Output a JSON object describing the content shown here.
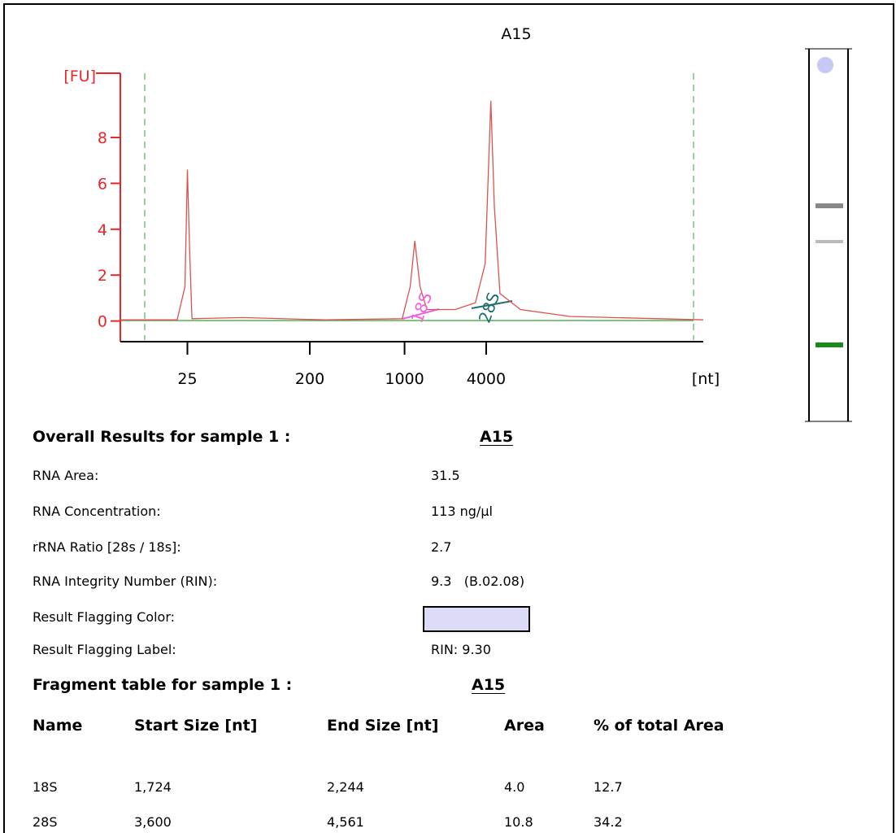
{
  "chart_data": {
    "type": "line",
    "title": "A15",
    "ylabel": "[FU]",
    "xlabel": "[nt]",
    "log_x": true,
    "x": [
      8,
      21,
      24,
      25,
      26,
      27,
      64,
      258,
      961,
      1100,
      1190,
      1300,
      1460,
      2370,
      3330,
      3930,
      4330,
      4600,
      5060,
      7150,
      16600,
      160000
    ],
    "series": [
      {
        "color": "#d9534f",
        "values": [
          0.05,
          0.05,
          1.5,
          6.6,
          3,
          0.1,
          0.15,
          0.05,
          0.1,
          1.5,
          3.5,
          1.5,
          0.5,
          0.5,
          0.8,
          2.5,
          9.6,
          5,
          1.2,
          0.5,
          0.2,
          0.05
        ]
      }
    ],
    "axis_color": "#e8262a",
    "annotations": [
      {
        "text": "18S",
        "x": 1460,
        "y": 0.5,
        "color": "#f060e0"
      },
      {
        "text": "28S",
        "x": 4600,
        "y": 0.5,
        "color": "#207070"
      }
    ],
    "xlim": [
      8,
      160000
    ],
    "xticks": [
      25,
      200,
      1000,
      4000
    ],
    "ylim": [
      -0.9,
      10.8
    ],
    "yticks": [
      0,
      2,
      4,
      6,
      8
    ]
  },
  "overall": {
    "title": "Overall Results for sample 1 :",
    "sample": "A15",
    "rows": [
      [
        "RNA Area:",
        "31.5"
      ],
      [
        "RNA Concentration:",
        "113 ng/µl"
      ],
      [
        "rRNA Ratio [28s / 18s]:",
        "2.7"
      ],
      [
        "RNA Integrity Number (RIN):",
        "9.3   (B.02.08)"
      ],
      [
        "Result Flagging Color:",
        ""
      ],
      [
        "Result Flagging Label:",
        "RIN: 9.30"
      ]
    ],
    "flag_color": "#dcdcf8"
  },
  "fragments": {
    "title": "Fragment table for sample 1 :",
    "sample": "A15",
    "header": [
      "Name",
      "Start Size [nt]",
      "End Size [nt]",
      "Area",
      "% of total Area"
    ],
    "rows": [
      [
        "18S",
        "1,724",
        "2,244",
        "4.0",
        "12.7"
      ],
      [
        "28S",
        "3,600",
        "4,561",
        "10.8",
        "34.2"
      ]
    ]
  }
}
